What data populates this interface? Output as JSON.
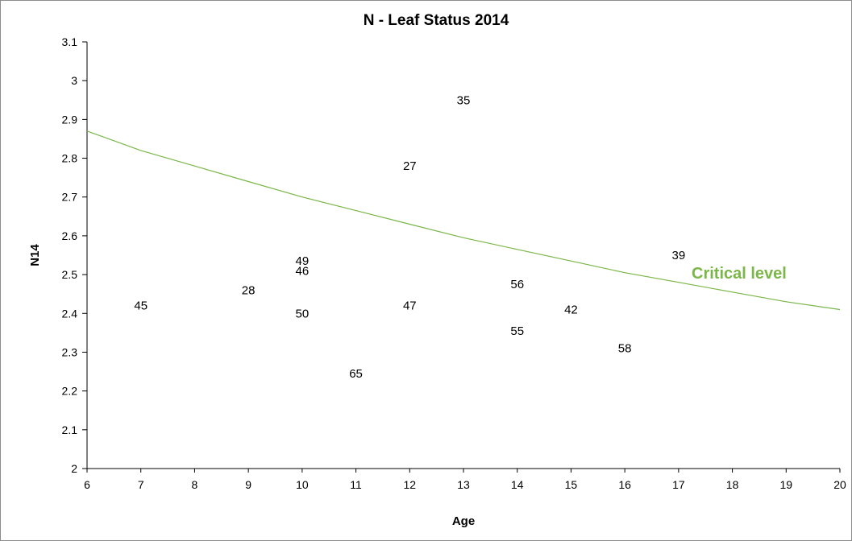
{
  "chart_data": {
    "type": "scatter",
    "title": "N - Leaf Status 2014",
    "xlabel": "Age",
    "ylabel": "N14",
    "xlim": [
      6,
      20
    ],
    "ylim": [
      2,
      3.1
    ],
    "x_ticks": [
      "6",
      "7",
      "8",
      "9",
      "10",
      "11",
      "12",
      "13",
      "14",
      "15",
      "16",
      "17",
      "18",
      "19",
      "20"
    ],
    "y_ticks": [
      "2",
      "2.1",
      "2.2",
      "2.3",
      "2.4",
      "2.5",
      "2.6",
      "2.7",
      "2.8",
      "2.9",
      "3",
      "3.1"
    ],
    "grid": false,
    "points": [
      {
        "label": "45",
        "x": 7,
        "y": 2.42
      },
      {
        "label": "28",
        "x": 9,
        "y": 2.46
      },
      {
        "label": "49",
        "x": 10,
        "y": 2.535
      },
      {
        "label": "46",
        "x": 10,
        "y": 2.51
      },
      {
        "label": "50",
        "x": 10,
        "y": 2.4
      },
      {
        "label": "65",
        "x": 11,
        "y": 2.245
      },
      {
        "label": "27",
        "x": 12,
        "y": 2.78
      },
      {
        "label": "47",
        "x": 12,
        "y": 2.42
      },
      {
        "label": "35",
        "x": 13,
        "y": 2.95
      },
      {
        "label": "56",
        "x": 14,
        "y": 2.475
      },
      {
        "label": "55",
        "x": 14,
        "y": 2.355
      },
      {
        "label": "42",
        "x": 15,
        "y": 2.41
      },
      {
        "label": "58",
        "x": 16,
        "y": 2.31
      },
      {
        "label": "39",
        "x": 17,
        "y": 2.55
      }
    ],
    "critical_curve": {
      "label": "Critical level",
      "color": "#7ab648",
      "x": [
        6,
        7,
        8,
        9,
        10,
        11,
        12,
        13,
        14,
        15,
        16,
        17,
        18,
        19,
        20
      ],
      "y": [
        2.87,
        2.82,
        2.78,
        2.74,
        2.7,
        2.665,
        2.63,
        2.595,
        2.565,
        2.535,
        2.505,
        2.48,
        2.455,
        2.43,
        2.41
      ]
    }
  }
}
